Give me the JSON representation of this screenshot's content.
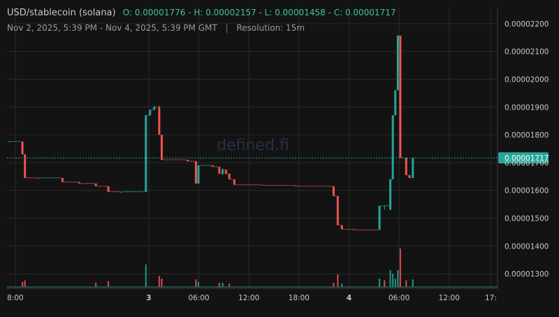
{
  "header": {
    "pair": "USD/stablecoin (solana)",
    "ohlc": "O: 0.00001776 - H: 0.00002157 - L: 0.00001458 - C: 0.00001717",
    "range": "Nov 2, 2025, 5:39 PM - Nov 4, 2025, 5:39 PM GMT",
    "separator": "|",
    "resolution": "Resolution: 15m"
  },
  "watermark": "defined.fi",
  "colors": {
    "up": "#26a69a",
    "down": "#ef5350",
    "background": "#131313",
    "last_price_line": "#26a69a"
  },
  "chart_data": {
    "type": "candlestick",
    "title": "USD/stablecoin (solana)",
    "y_ticks": [
      "0.00001300",
      "0.00001400",
      "0.00001500",
      "0.00001600",
      "0.00001700",
      "0.00001800",
      "0.00001900",
      "0.00002000",
      "0.00002100",
      "0.00002200"
    ],
    "y_range": [
      1.25e-05,
      2.26e-05
    ],
    "x_ticks": [
      {
        "label": "8:00",
        "hour": 14.35,
        "bold": false
      },
      {
        "label": "3",
        "hour": 30.35,
        "bold": true
      },
      {
        "label": "06:00",
        "hour": 36.35,
        "bold": false
      },
      {
        "label": "12:00",
        "hour": 42.35,
        "bold": false
      },
      {
        "label": "18:00",
        "hour": 48.35,
        "bold": false
      },
      {
        "label": "4",
        "hour": 54.35,
        "bold": true
      },
      {
        "label": "06:00",
        "hour": 60.35,
        "bold": false
      },
      {
        "label": "12:00",
        "hour": 66.35,
        "bold": false
      },
      {
        "label": "17:",
        "hour": 71.35,
        "bold": false
      }
    ],
    "x_range_hours": [
      13.35,
      72.15
    ],
    "last_price": 1.717e-05,
    "last_price_label": "0.00001717",
    "candles": [
      {
        "t": 13.6,
        "o": 1.776e-05,
        "h": 1.776e-05,
        "l": 1.776e-05,
        "c": 1.776e-05
      },
      {
        "t": 15.2,
        "o": 1.776e-05,
        "h": 1.776e-05,
        "l": 1.73e-05,
        "c": 1.73e-05
      },
      {
        "t": 15.5,
        "o": 1.73e-05,
        "h": 1.73e-05,
        "l": 1.645e-05,
        "c": 1.645e-05
      },
      {
        "t": 17.0,
        "o": 1.645e-05,
        "h": 1.645e-05,
        "l": 1.645e-05,
        "c": 1.645e-05
      },
      {
        "t": 20.0,
        "o": 1.645e-05,
        "h": 1.645e-05,
        "l": 1.63e-05,
        "c": 1.63e-05
      },
      {
        "t": 22.0,
        "o": 1.63e-05,
        "h": 1.63e-05,
        "l": 1.625e-05,
        "c": 1.625e-05
      },
      {
        "t": 24.0,
        "o": 1.625e-05,
        "h": 1.625e-05,
        "l": 1.615e-05,
        "c": 1.615e-05
      },
      {
        "t": 25.5,
        "o": 1.615e-05,
        "h": 1.615e-05,
        "l": 1.595e-05,
        "c": 1.595e-05
      },
      {
        "t": 27.0,
        "o": 1.595e-05,
        "h": 1.595e-05,
        "l": 1.595e-05,
        "c": 1.595e-05
      },
      {
        "t": 30.0,
        "o": 1.595e-05,
        "h": 1.87e-05,
        "l": 1.595e-05,
        "c": 1.87e-05
      },
      {
        "t": 30.5,
        "o": 1.87e-05,
        "h": 1.89e-05,
        "l": 1.87e-05,
        "c": 1.89e-05
      },
      {
        "t": 31.0,
        "o": 1.89e-05,
        "h": 1.905e-05,
        "l": 1.89e-05,
        "c": 1.9e-05
      },
      {
        "t": 31.6,
        "o": 1.9e-05,
        "h": 1.905e-05,
        "l": 1.8e-05,
        "c": 1.8e-05
      },
      {
        "t": 31.9,
        "o": 1.8e-05,
        "h": 1.8e-05,
        "l": 1.71e-05,
        "c": 1.71e-05
      },
      {
        "t": 35.0,
        "o": 1.71e-05,
        "h": 1.71e-05,
        "l": 1.705e-05,
        "c": 1.705e-05
      },
      {
        "t": 36.0,
        "o": 1.705e-05,
        "h": 1.705e-05,
        "l": 1.625e-05,
        "c": 1.625e-05
      },
      {
        "t": 36.3,
        "o": 1.625e-05,
        "h": 1.69e-05,
        "l": 1.625e-05,
        "c": 1.69e-05
      },
      {
        "t": 38.0,
        "o": 1.69e-05,
        "h": 1.69e-05,
        "l": 1.685e-05,
        "c": 1.685e-05
      },
      {
        "t": 38.8,
        "o": 1.685e-05,
        "h": 1.685e-05,
        "l": 1.66e-05,
        "c": 1.66e-05
      },
      {
        "t": 39.2,
        "o": 1.66e-05,
        "h": 1.68e-05,
        "l": 1.655e-05,
        "c": 1.675e-05
      },
      {
        "t": 39.6,
        "o": 1.675e-05,
        "h": 1.675e-05,
        "l": 1.658e-05,
        "c": 1.66e-05
      },
      {
        "t": 40.0,
        "o": 1.66e-05,
        "h": 1.66e-05,
        "l": 1.64e-05,
        "c": 1.64e-05
      },
      {
        "t": 40.6,
        "o": 1.64e-05,
        "h": 1.64e-05,
        "l": 1.62e-05,
        "c": 1.62e-05
      },
      {
        "t": 44.0,
        "o": 1.62e-05,
        "h": 1.62e-05,
        "l": 1.618e-05,
        "c": 1.618e-05
      },
      {
        "t": 48.0,
        "o": 1.618e-05,
        "h": 1.618e-05,
        "l": 1.615e-05,
        "c": 1.615e-05
      },
      {
        "t": 52.5,
        "o": 1.615e-05,
        "h": 1.615e-05,
        "l": 1.58e-05,
        "c": 1.58e-05
      },
      {
        "t": 53.0,
        "o": 1.58e-05,
        "h": 1.58e-05,
        "l": 1.475e-05,
        "c": 1.475e-05
      },
      {
        "t": 53.5,
        "o": 1.475e-05,
        "h": 1.475e-05,
        "l": 1.46e-05,
        "c": 1.46e-05
      },
      {
        "t": 55.0,
        "o": 1.46e-05,
        "h": 1.46e-05,
        "l": 1.458e-05,
        "c": 1.458e-05
      },
      {
        "t": 58.0,
        "o": 1.458e-05,
        "h": 1.545e-05,
        "l": 1.458e-05,
        "c": 1.545e-05
      },
      {
        "t": 58.6,
        "o": 1.545e-05,
        "h": 1.545e-05,
        "l": 1.53e-05,
        "c": 1.545e-05
      },
      {
        "t": 59.3,
        "o": 1.53e-05,
        "h": 1.64e-05,
        "l": 1.53e-05,
        "c": 1.64e-05
      },
      {
        "t": 59.6,
        "o": 1.64e-05,
        "h": 1.87e-05,
        "l": 1.64e-05,
        "c": 1.87e-05
      },
      {
        "t": 59.9,
        "o": 1.87e-05,
        "h": 1.96e-05,
        "l": 1.87e-05,
        "c": 1.96e-05
      },
      {
        "t": 60.2,
        "o": 1.96e-05,
        "h": 2.157e-05,
        "l": 1.96e-05,
        "c": 2.157e-05
      },
      {
        "t": 60.5,
        "o": 2.157e-05,
        "h": 2.157e-05,
        "l": 1.717e-05,
        "c": 1.717e-05
      },
      {
        "t": 61.2,
        "o": 1.717e-05,
        "h": 1.717e-05,
        "l": 1.655e-05,
        "c": 1.655e-05
      },
      {
        "t": 61.6,
        "o": 1.655e-05,
        "h": 1.655e-05,
        "l": 1.645e-05,
        "c": 1.645e-05
      },
      {
        "t": 62.0,
        "o": 1.645e-05,
        "h": 1.717e-05,
        "l": 1.645e-05,
        "c": 1.717e-05
      }
    ],
    "volumes": [
      {
        "t": 15.2,
        "v": 0.06,
        "up": false
      },
      {
        "t": 15.5,
        "v": 0.08,
        "up": false
      },
      {
        "t": 24.0,
        "v": 0.05,
        "up": false
      },
      {
        "t": 25.5,
        "v": 0.07,
        "up": false
      },
      {
        "t": 30.0,
        "v": 0.27,
        "up": true
      },
      {
        "t": 31.6,
        "v": 0.13,
        "up": false
      },
      {
        "t": 31.9,
        "v": 0.1,
        "up": false
      },
      {
        "t": 36.0,
        "v": 0.09,
        "up": false
      },
      {
        "t": 36.3,
        "v": 0.06,
        "up": true
      },
      {
        "t": 38.8,
        "v": 0.05,
        "up": false
      },
      {
        "t": 39.2,
        "v": 0.05,
        "up": true
      },
      {
        "t": 40.0,
        "v": 0.04,
        "up": false
      },
      {
        "t": 52.5,
        "v": 0.05,
        "up": false
      },
      {
        "t": 53.0,
        "v": 0.15,
        "up": false
      },
      {
        "t": 53.5,
        "v": 0.04,
        "up": true
      },
      {
        "t": 58.0,
        "v": 0.1,
        "up": true
      },
      {
        "t": 58.6,
        "v": 0.08,
        "up": false
      },
      {
        "t": 59.3,
        "v": 0.2,
        "up": true
      },
      {
        "t": 59.6,
        "v": 0.16,
        "up": true
      },
      {
        "t": 59.9,
        "v": 0.1,
        "up": true
      },
      {
        "t": 60.2,
        "v": 0.2,
        "up": true
      },
      {
        "t": 60.5,
        "v": 0.46,
        "up": false
      },
      {
        "t": 61.2,
        "v": 0.08,
        "up": false
      },
      {
        "t": 62.0,
        "v": 0.09,
        "up": true
      }
    ]
  }
}
